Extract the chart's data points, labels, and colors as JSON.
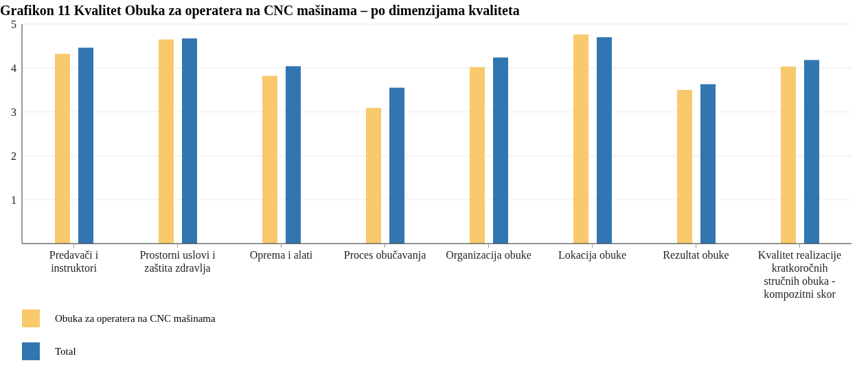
{
  "chart_data": {
    "type": "bar",
    "title": "Grafikon 11 Kvalitet Obuka za operatera na CNC mašinama – po dimenzijama kvaliteta",
    "categories": [
      "Predavači i instruktori",
      "Prostorni uslovi i zaštita zdravlja",
      "Oprema i alati",
      "Proces obučavanja",
      "Organizacija obuke",
      "Lokacija obuke",
      "Rezultat obuke",
      "Kvalitet realizacije kratkoročnih stručnih obuka - kompozitni skor"
    ],
    "series": [
      {
        "name": "Obuka za operatera na CNC mašinama",
        "color": "#f9c96d",
        "values": [
          4.32,
          4.65,
          3.82,
          3.09,
          4.02,
          4.76,
          3.5,
          4.03
        ]
      },
      {
        "name": "Total",
        "color": "#3276b1",
        "values": [
          4.46,
          4.67,
          4.04,
          3.55,
          4.24,
          4.7,
          3.63,
          4.18
        ]
      }
    ],
    "ylim": [
      0,
      5
    ],
    "yticks": [
      1,
      2,
      3,
      4,
      5
    ],
    "grid": "y",
    "legend": "bottom left"
  }
}
